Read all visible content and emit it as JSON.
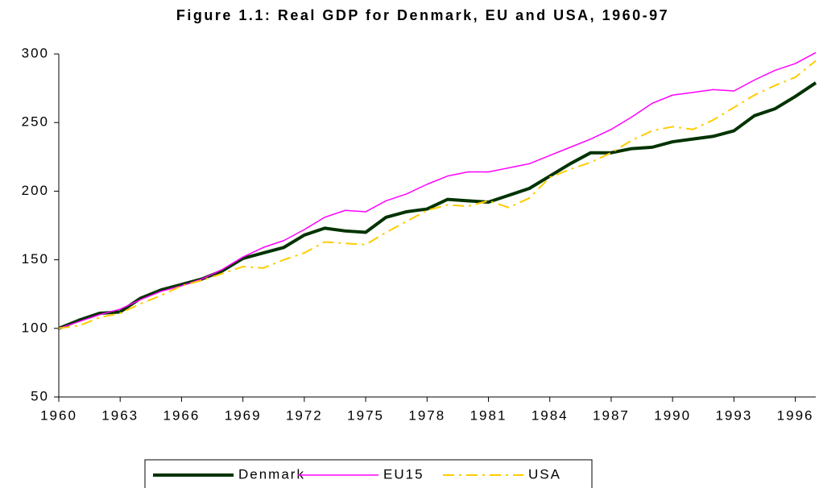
{
  "chart_data": {
    "type": "line",
    "title": "Figure 1.1: Real GDP for Denmark, EU and USA, 1960-97",
    "x": [
      1960,
      1961,
      1962,
      1963,
      1964,
      1965,
      1966,
      1967,
      1968,
      1969,
      1970,
      1971,
      1972,
      1973,
      1974,
      1975,
      1976,
      1977,
      1978,
      1979,
      1980,
      1981,
      1982,
      1983,
      1984,
      1985,
      1986,
      1987,
      1988,
      1989,
      1990,
      1991,
      1992,
      1993,
      1994,
      1995,
      1996,
      1997
    ],
    "series": [
      {
        "name": "Denmark",
        "color": "#003300",
        "values": [
          100,
          106,
          111,
          112,
          122,
          128,
          132,
          136,
          142,
          151,
          155,
          159,
          168,
          173,
          171,
          170,
          181,
          185,
          187,
          194,
          193,
          192,
          197,
          202,
          211,
          220,
          228,
          228,
          231,
          232,
          236,
          238,
          240,
          244,
          255,
          260,
          269,
          279
        ]
      },
      {
        "name": "EU15",
        "color": "#ff00ff",
        "values": [
          100,
          105,
          110,
          114,
          121,
          127,
          131,
          136,
          143,
          152,
          159,
          164,
          172,
          181,
          186,
          185,
          193,
          198,
          205,
          211,
          214,
          214,
          217,
          220,
          226,
          232,
          238,
          245,
          254,
          264,
          270,
          272,
          274,
          273,
          281,
          288,
          293,
          301
        ]
      },
      {
        "name": "USA",
        "color": "#ffcc00",
        "values": [
          100,
          102,
          108,
          111,
          118,
          124,
          131,
          135,
          140,
          145,
          144,
          150,
          155,
          163,
          162,
          161,
          170,
          178,
          186,
          190,
          189,
          193,
          188,
          195,
          210,
          216,
          221,
          228,
          237,
          244,
          247,
          245,
          252,
          261,
          270,
          277,
          283,
          295
        ]
      }
    ],
    "xlim": [
      1960,
      1997
    ],
    "xticks": [
      1960,
      1963,
      1966,
      1969,
      1972,
      1975,
      1978,
      1981,
      1984,
      1987,
      1990,
      1993,
      1996
    ],
    "ylim": [
      50,
      300
    ],
    "yticks": [
      50,
      100,
      150,
      200,
      250,
      300
    ],
    "grid": false,
    "legend": "bottom"
  }
}
